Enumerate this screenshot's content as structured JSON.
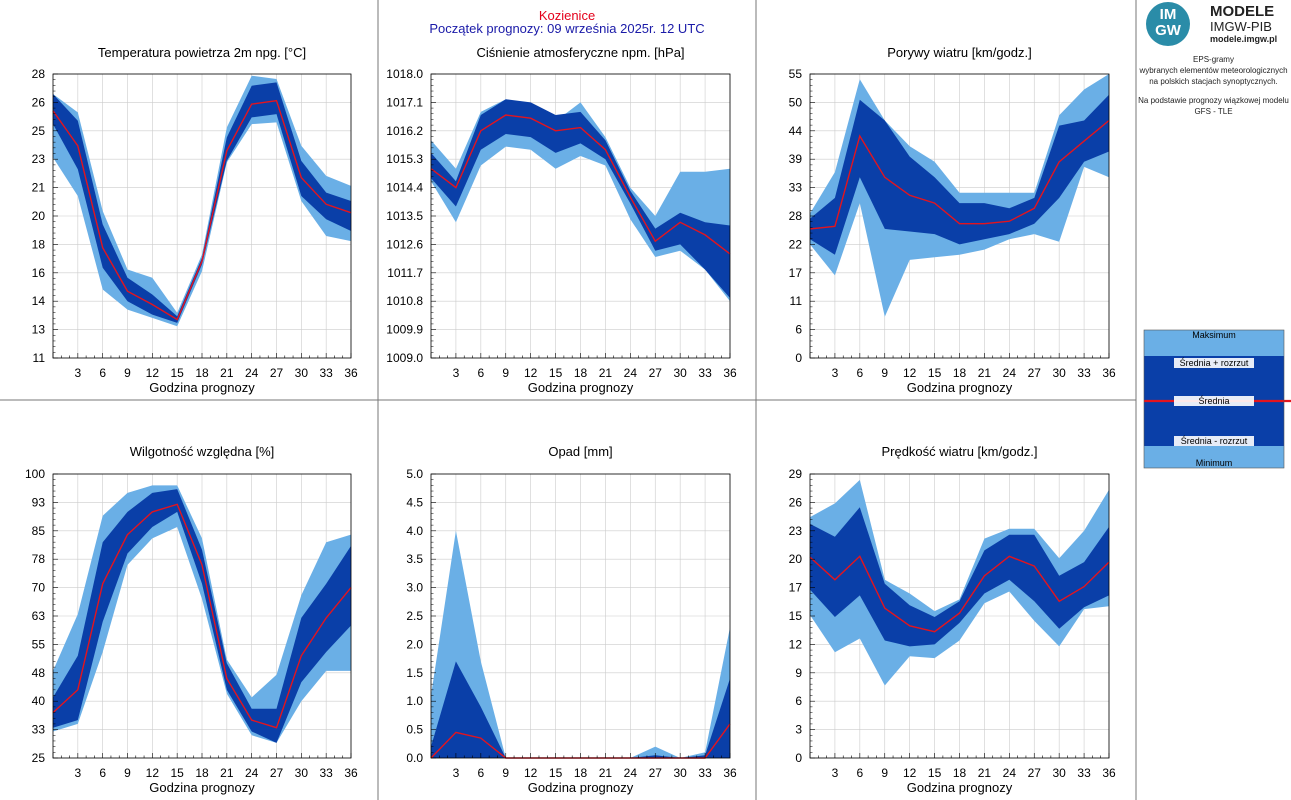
{
  "header": {
    "station": "Kozienice",
    "subtitle": "Początek prognozy: 09 września 2025r. 12 UTC"
  },
  "logo": {
    "mark_top": "IM",
    "mark_bottom": "GW",
    "title": "MODELE",
    "subtitle": "IMGW-PIB",
    "url": "modele.imgw.pl"
  },
  "description": {
    "line1": "EPS-gramy",
    "line2": "wybranych elementów meteorologicznych",
    "line3": "na polskich stacjach  synoptycznych.",
    "line4": "Na podstawie prognozy wiązkowej modelu",
    "line5": "GFS - TLE"
  },
  "legend": {
    "max": "Maksimum",
    "mean_plus": "Średnia + rozrzut",
    "mean": "Średnia",
    "mean_minus": "Średnia - rozrzut",
    "min": "Minimum"
  },
  "colors": {
    "outer_band": "#6aafe6",
    "inner_band": "#0a3fa8",
    "mean_line": "#e4141e",
    "grid": "#cccccc",
    "title_red": "#e4001b",
    "subtitle_blue": "#1a1aa8"
  },
  "chart_data": [
    {
      "type": "area",
      "title": "Temperatura powietrza 2m npg. [°C]",
      "xlabel": "Godzina prognozy",
      "x": [
        0,
        3,
        6,
        9,
        12,
        15,
        18,
        21,
        24,
        27,
        30,
        33,
        36
      ],
      "xticks": [
        "3",
        "6",
        "9",
        "12",
        "15",
        "18",
        "21",
        "24",
        "27",
        "30",
        "33",
        "36"
      ],
      "ylim": [
        11,
        28
      ],
      "yticks": [
        "11",
        "13",
        "14",
        "16",
        "18",
        "20",
        "21",
        "23",
        "25",
        "26",
        "28"
      ],
      "series": [
        {
          "role": "max",
          "values": [
            26.8,
            25.7,
            19.8,
            16.3,
            15.8,
            13.7,
            17.2,
            24.8,
            27.9,
            27.7,
            23.7,
            21.9,
            21.3
          ]
        },
        {
          "role": "mean_plus",
          "values": [
            26.8,
            25.2,
            19.0,
            15.8,
            14.8,
            13.5,
            17.0,
            24.2,
            27.3,
            27.5,
            22.8,
            20.9,
            20.4
          ]
        },
        {
          "role": "mean",
          "values": [
            25.8,
            23.7,
            17.6,
            15.0,
            14.2,
            13.3,
            16.8,
            23.4,
            26.2,
            26.4,
            21.8,
            20.2,
            19.7
          ]
        },
        {
          "role": "mean_minus",
          "values": [
            25.0,
            22.3,
            16.4,
            14.4,
            13.6,
            13.1,
            16.6,
            22.8,
            25.4,
            25.6,
            20.7,
            19.3,
            18.6
          ]
        },
        {
          "role": "min",
          "values": [
            23.0,
            20.7,
            15.1,
            13.9,
            13.4,
            12.9,
            16.2,
            22.7,
            25.0,
            25.1,
            20.4,
            18.3,
            18.0
          ]
        }
      ]
    },
    {
      "type": "area",
      "title": "Ciśnienie atmosferyczne npm. [hPa]",
      "xlabel": "Godzina prognozy",
      "x": [
        0,
        3,
        6,
        9,
        12,
        15,
        18,
        21,
        24,
        27,
        30,
        33,
        36
      ],
      "xticks": [
        "3",
        "6",
        "9",
        "12",
        "15",
        "18",
        "21",
        "24",
        "27",
        "30",
        "33",
        "36"
      ],
      "ylim": [
        1009.0,
        1018.0
      ],
      "yticks": [
        "1009.0",
        "1009.9",
        "1010.8",
        "1011.7",
        "1012.6",
        "1013.5",
        "1014.4",
        "1015.3",
        "1016.2",
        "1017.1",
        "1018.0"
      ],
      "series": [
        {
          "role": "max",
          "values": [
            1015.9,
            1015.0,
            1016.8,
            1017.2,
            1017.0,
            1016.5,
            1017.1,
            1016.0,
            1014.4,
            1013.5,
            1014.9,
            1014.9,
            1015.0
          ]
        },
        {
          "role": "mean_plus",
          "values": [
            1015.5,
            1014.6,
            1016.7,
            1017.2,
            1017.1,
            1016.7,
            1016.8,
            1015.9,
            1014.3,
            1013.1,
            1013.6,
            1013.3,
            1013.2
          ]
        },
        {
          "role": "mean",
          "values": [
            1015.0,
            1014.4,
            1016.2,
            1016.7,
            1016.6,
            1016.2,
            1016.3,
            1015.6,
            1014.1,
            1012.7,
            1013.3,
            1012.9,
            1012.3
          ]
        },
        {
          "role": "mean_minus",
          "values": [
            1014.7,
            1013.8,
            1015.6,
            1016.1,
            1016.0,
            1015.5,
            1015.8,
            1015.3,
            1013.9,
            1012.4,
            1012.6,
            1011.8,
            1010.9
          ]
        },
        {
          "role": "min",
          "values": [
            1014.6,
            1013.3,
            1015.1,
            1015.7,
            1015.6,
            1015.0,
            1015.4,
            1015.1,
            1013.4,
            1012.2,
            1012.4,
            1011.8,
            1010.8
          ]
        }
      ]
    },
    {
      "type": "area",
      "title": "Porywy wiatru [km/godz.]",
      "xlabel": "Godzina prognozy",
      "x": [
        0,
        3,
        6,
        9,
        12,
        15,
        18,
        21,
        24,
        27,
        30,
        33,
        36
      ],
      "xticks": [
        "3",
        "6",
        "9",
        "12",
        "15",
        "18",
        "21",
        "24",
        "27",
        "30",
        "33",
        "36"
      ],
      "ylim": [
        0,
        55
      ],
      "yticks": [
        "0",
        "6",
        "11",
        "17",
        "22",
        "28",
        "33",
        "39",
        "44",
        "50",
        "55"
      ],
      "series": [
        {
          "role": "max",
          "values": [
            28,
            36,
            54,
            46,
            41,
            38,
            32,
            32,
            32,
            32,
            47,
            52,
            55
          ]
        },
        {
          "role": "mean_plus",
          "values": [
            27,
            31,
            50,
            46,
            39,
            35,
            30,
            30,
            29,
            31,
            45,
            46,
            51
          ]
        },
        {
          "role": "mean",
          "values": [
            25,
            25.5,
            43,
            35,
            31.5,
            30,
            26,
            26,
            26.5,
            29,
            38,
            42,
            46
          ]
        },
        {
          "role": "mean_minus",
          "values": [
            23,
            20,
            35,
            25,
            24.5,
            24,
            22,
            23,
            24,
            26,
            31,
            38,
            40
          ]
        },
        {
          "role": "min",
          "values": [
            22,
            16,
            30,
            8,
            19,
            19.5,
            20,
            21,
            23,
            24,
            22.5,
            37,
            35
          ]
        }
      ]
    },
    {
      "type": "area",
      "title": "Wilgotność względna [%]",
      "xlabel": "Godzina prognozy",
      "x": [
        0,
        3,
        6,
        9,
        12,
        15,
        18,
        21,
        24,
        27,
        30,
        33,
        36
      ],
      "xticks": [
        "3",
        "6",
        "9",
        "12",
        "15",
        "18",
        "21",
        "24",
        "27",
        "30",
        "33",
        "36"
      ],
      "ylim": [
        25,
        100
      ],
      "yticks": [
        "25",
        "33",
        "40",
        "48",
        "55",
        "63",
        "70",
        "78",
        "85",
        "93",
        "100"
      ],
      "series": [
        {
          "role": "max",
          "values": [
            48,
            63,
            89,
            95,
            97,
            97,
            83,
            51,
            41,
            47,
            68,
            82,
            84
          ]
        },
        {
          "role": "mean_plus",
          "values": [
            41,
            52,
            82,
            90,
            95,
            96,
            80,
            50,
            38,
            38,
            62,
            71,
            81
          ]
        },
        {
          "role": "mean",
          "values": [
            37,
            43,
            71,
            84,
            90,
            92,
            76,
            46,
            35,
            33,
            52,
            62,
            70
          ]
        },
        {
          "role": "mean_minus",
          "values": [
            33,
            35,
            61,
            79,
            86,
            90,
            71,
            43,
            32,
            29,
            45,
            53,
            60
          ]
        },
        {
          "role": "min",
          "values": [
            32,
            34,
            53,
            76,
            83,
            86,
            67,
            42,
            31,
            29,
            40,
            48,
            48
          ]
        }
      ]
    },
    {
      "type": "area",
      "title": "Opad [mm]",
      "xlabel": "Godzina prognozy",
      "x": [
        0,
        3,
        6,
        9,
        12,
        15,
        18,
        21,
        24,
        27,
        30,
        33,
        36
      ],
      "xticks": [
        "3",
        "6",
        "9",
        "12",
        "15",
        "18",
        "21",
        "24",
        "27",
        "30",
        "33",
        "36"
      ],
      "ylim": [
        0.0,
        5.0
      ],
      "yticks": [
        "0.0",
        "0.5",
        "1.0",
        "1.5",
        "2.0",
        "2.5",
        "3.0",
        "3.5",
        "4.0",
        "4.5",
        "5.0"
      ],
      "series": [
        {
          "role": "max",
          "values": [
            1.1,
            4.0,
            1.7,
            0,
            0,
            0,
            0,
            0,
            0,
            0.2,
            0,
            0.1,
            2.3
          ]
        },
        {
          "role": "mean_plus",
          "values": [
            0.2,
            1.7,
            0.9,
            0,
            0,
            0,
            0,
            0,
            0,
            0.05,
            0,
            0.05,
            1.4
          ]
        },
        {
          "role": "mean",
          "values": [
            0,
            0.45,
            0.35,
            0,
            0,
            0,
            0,
            0,
            0,
            0,
            0,
            0,
            0.6
          ]
        },
        {
          "role": "mean_minus",
          "values": [
            0,
            0,
            0,
            0,
            0,
            0,
            0,
            0,
            0,
            0,
            0,
            0,
            0
          ]
        },
        {
          "role": "min",
          "values": [
            0,
            0,
            0,
            0,
            0,
            0,
            0,
            0,
            0,
            0,
            0,
            0,
            0
          ]
        }
      ]
    },
    {
      "type": "area",
      "title": "Prędkość wiatru [km/godz.]",
      "xlabel": "Godzina prognozy",
      "x": [
        0,
        3,
        6,
        9,
        12,
        15,
        18,
        21,
        24,
        27,
        30,
        33,
        36
      ],
      "xticks": [
        "3",
        "6",
        "9",
        "12",
        "15",
        "18",
        "21",
        "24",
        "27",
        "30",
        "33",
        "36"
      ],
      "ylim": [
        0,
        29
      ],
      "yticks": [
        "0",
        "3",
        "6",
        "9",
        "12",
        "15",
        "17",
        "20",
        "23",
        "26",
        "29"
      ],
      "series": [
        {
          "role": "max",
          "values": [
            24.6,
            26,
            28.4,
            18.2,
            16.8,
            15,
            16.2,
            22.4,
            23.4,
            23.4,
            20.4,
            23.2,
            27.4
          ]
        },
        {
          "role": "mean_plus",
          "values": [
            23.9,
            22.6,
            25.6,
            17.8,
            15.6,
            14.4,
            16.0,
            21.2,
            22.8,
            22.8,
            18.6,
            20,
            23.6
          ]
        },
        {
          "role": "mean",
          "values": [
            20.5,
            18.2,
            20.6,
            15.3,
            13.5,
            12.9,
            14.8,
            18.6,
            20.6,
            19.6,
            16.0,
            17.5,
            20.0
          ]
        },
        {
          "role": "mean_minus",
          "values": [
            17.2,
            14.4,
            16.6,
            12.0,
            11.4,
            11.6,
            13.8,
            16.8,
            18.2,
            16.0,
            13.2,
            15.4,
            16.6
          ]
        },
        {
          "role": "min",
          "values": [
            14.6,
            10.8,
            12.2,
            7.4,
            10.4,
            10.2,
            12.0,
            15.8,
            17.0,
            14.0,
            11.4,
            15.2,
            15.5
          ]
        }
      ]
    }
  ]
}
